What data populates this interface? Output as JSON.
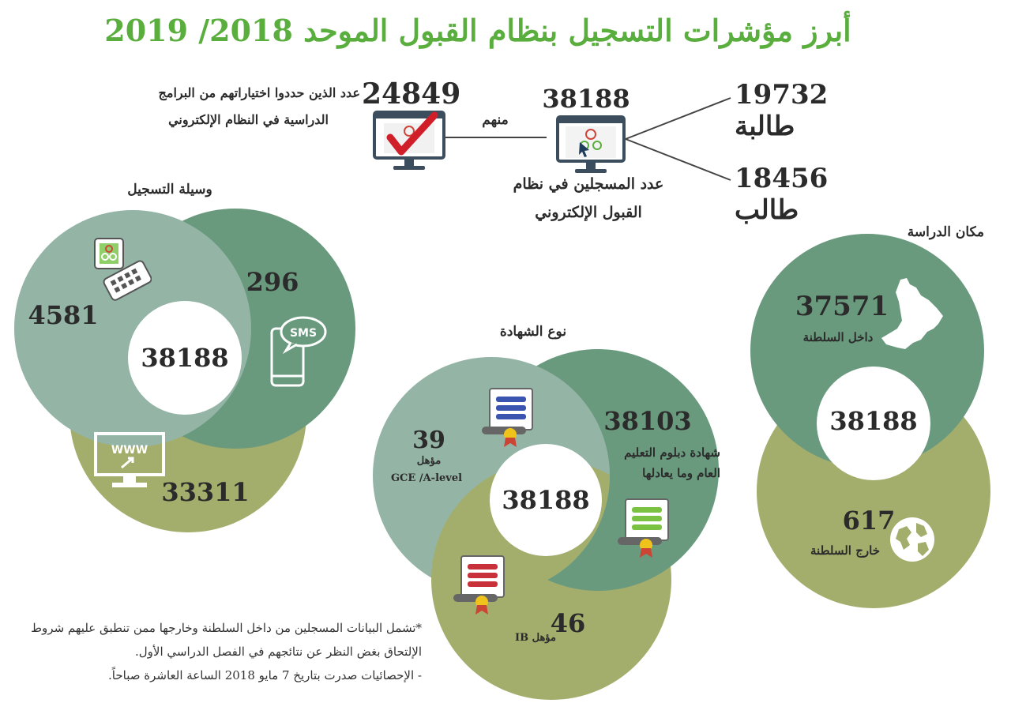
{
  "title": "أبرز مؤشرات التسجيل بنظام القبول الموحد 2018/ 2019",
  "colors": {
    "title_green": "#5aae3e",
    "dark_green": "#6a9a7e",
    "light_green": "#94b4a6",
    "olive": "#a3ad6c",
    "white": "#ffffff"
  },
  "top": {
    "registered_total": "38188",
    "registered_label_line1": "عدد المسجلين في نظام",
    "registered_label_line2": "القبول الإلكتروني",
    "chose_total": "24849",
    "chose_label_line1": "عدد الذين حددوا اختياراتهم من البرامج",
    "chose_label_line2": "الدراسية في النظام الإلكتروني",
    "of_them": "منهم",
    "females": "19732 طالبة",
    "males": "18456 طالب"
  },
  "registration_method": {
    "title": "وسيلة التسجيل",
    "app_value": "4581",
    "sms_value": "296",
    "web_value": "33311",
    "total": "38188"
  },
  "certificate_type": {
    "title": "نوع الشهادة",
    "gce_value": "39",
    "gce_label_line1": "مؤهل",
    "gce_label_line2": "GCE /A-level",
    "diploma_value": "38103",
    "diploma_label_line1": "شهادة دبلوم التعليم",
    "diploma_label_line2": "العام وما يعادلها",
    "ib_value": "46",
    "ib_label": "مؤهل IB",
    "total": "38188"
  },
  "study_place": {
    "title": "مكان الدراسة",
    "inside_value": "37571",
    "inside_label": "داخل السلطنة",
    "outside_value": "617",
    "outside_label": "خارج السلطنة",
    "total": "38188"
  },
  "icons": {
    "computer_check": "monitor-with-checkmark-icon",
    "computer_logo": "monitor-with-cursor-icon",
    "phone_app": "phone-app-icon",
    "sms": "sms-phone-icon",
    "www": "www-monitor-icon",
    "certificate_blue": "certificate-blue-icon",
    "certificate_green": "certificate-green-icon",
    "certificate_red": "certificate-red-icon",
    "oman_map": "oman-map-icon",
    "globe": "globe-icon"
  },
  "notes": {
    "line1": "*تشمل البيانات المسجلين من داخل السلطنة وخارجها ممن تنطبق عليهم شروط",
    "line2": "الإلتحاق بغض النظر عن نتائجهم في الفصل الدراسي الأول.",
    "line3": "- الإحصائيات صدرت بتاريخ 7 مايو 2018 الساعة العاشرة صباحاً."
  }
}
